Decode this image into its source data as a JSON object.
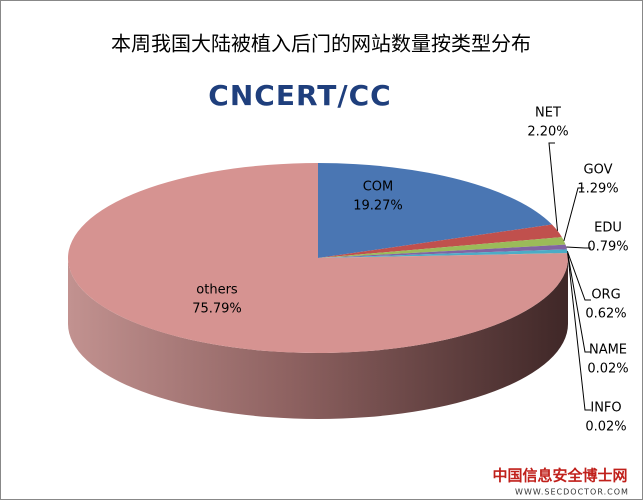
{
  "chart_data": {
    "type": "pie3d",
    "title": "本周我国大陆被植入后门的网站数量按类型分布",
    "logo": "CNCERT/CC",
    "watermark": {
      "site": "中国信息安全博士网",
      "url": "WWW.SECDOCTOR.COM"
    },
    "categories": [
      "COM",
      "NET",
      "GOV",
      "EDU",
      "ORG",
      "NAME",
      "INFO",
      "others"
    ],
    "values": [
      19.27,
      2.2,
      1.29,
      0.79,
      0.62,
      0.02,
      0.02,
      75.79
    ],
    "value_labels": [
      "19.27%",
      "2.20%",
      "1.29%",
      "0.79%",
      "0.62%",
      "0.02%",
      "0.02%",
      "75.79%"
    ],
    "colors": [
      "#4a76b3",
      "#c0504d",
      "#9bbb59",
      "#8064a2",
      "#4bacc6",
      "#f79646",
      "#2c4d75",
      "#d69391"
    ]
  }
}
